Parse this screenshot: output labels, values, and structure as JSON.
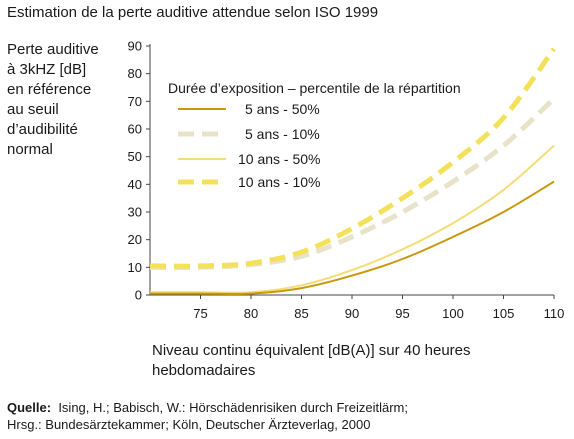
{
  "title": "Estimation de la perte auditive attendue selon ISO 1999",
  "ylabel_lines": [
    "Perte auditive",
    "à 3kHZ [dB]",
    "en référence",
    "au seuil",
    "d’audibilité",
    "normal"
  ],
  "xlabel_lines": [
    "Niveau continu équivalent [dB(A)] sur 40 heures",
    "hebdomadaires"
  ],
  "source": {
    "label": "Quelle:",
    "line1": "Ising, H.; Babisch, W.: Hörschädenrisiken durch Freizeitlärm;",
    "line2": "Hrsg.: Bundesärztekammer; Köln, Deutscher Ärzteverlag, 2000"
  },
  "chart_data": {
    "type": "line",
    "xlim": [
      70,
      110
    ],
    "ylim": [
      0,
      90
    ],
    "xticks": [
      75,
      80,
      85,
      90,
      95,
      100,
      105,
      110
    ],
    "yticks": [
      0,
      10,
      20,
      30,
      40,
      50,
      60,
      70,
      80,
      90
    ],
    "grid": false,
    "legend_title": "Durée d’exposition – percentile de la répartition",
    "legend_position": "top-left",
    "series": [
      {
        "name": "5 ans  - 50%",
        "color": "#c9980f",
        "style": "solid",
        "x": [
          70,
          75,
          80,
          85,
          90,
          95,
          100,
          105,
          110
        ],
        "y": [
          0.5,
          0.5,
          0.5,
          2.5,
          7,
          13,
          21,
          30,
          41
        ]
      },
      {
        "name": "5 ans  - 10%",
        "color": "#e8e3c8",
        "style": "dashed",
        "x": [
          70,
          75,
          80,
          85,
          90,
          95,
          100,
          105,
          110
        ],
        "y": [
          10,
          10,
          11,
          14,
          21,
          30,
          41,
          54,
          71
        ]
      },
      {
        "name": "10 ans  - 50%",
        "color": "#f5dc78",
        "style": "solid",
        "x": [
          70,
          75,
          80,
          85,
          90,
          95,
          100,
          105,
          110
        ],
        "y": [
          1,
          1,
          1,
          3.5,
          9,
          16.5,
          26,
          38,
          54
        ]
      },
      {
        "name": "10 ans  - 10%",
        "color": "#f5e05a",
        "style": "dashed",
        "x": [
          70,
          75,
          80,
          85,
          90,
          95,
          100,
          105,
          110
        ],
        "y": [
          10.5,
          10.5,
          11.5,
          15.5,
          24,
          35,
          48,
          64,
          89
        ]
      }
    ]
  }
}
